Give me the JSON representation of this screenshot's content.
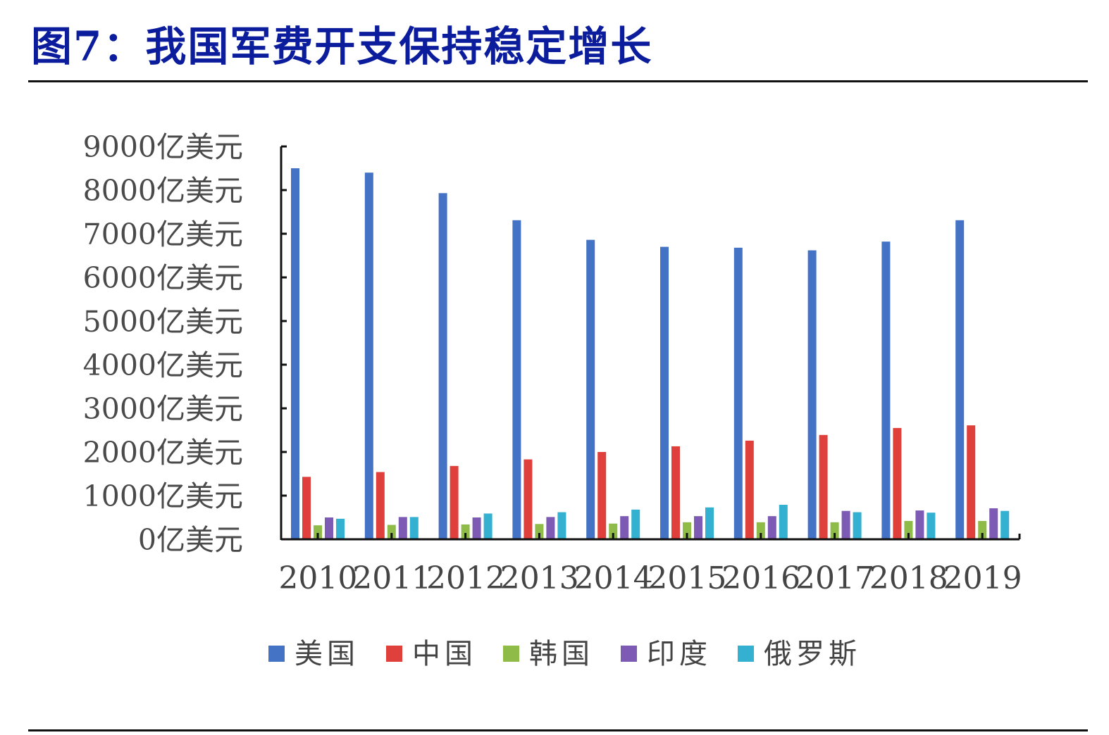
{
  "title": "图7：我国军费开支保持稳定增长",
  "chart_data": {
    "type": "bar",
    "categories": [
      "2010",
      "2011",
      "2012",
      "2013",
      "2014",
      "2015",
      "2016",
      "2017",
      "2018",
      "2019"
    ],
    "series": [
      {
        "name": "美国",
        "color": "#4472c4",
        "values": [
          8500,
          8400,
          7930,
          7310,
          6860,
          6700,
          6680,
          6620,
          6820,
          7310
        ]
      },
      {
        "name": "中国",
        "color": "#e0403c",
        "values": [
          1430,
          1540,
          1680,
          1830,
          2000,
          2130,
          2260,
          2390,
          2550,
          2610
        ]
      },
      {
        "name": "韩国",
        "color": "#8fbc48",
        "values": [
          320,
          330,
          340,
          350,
          360,
          390,
          390,
          390,
          420,
          420
        ]
      },
      {
        "name": "印度",
        "color": "#7d5ab4",
        "values": [
          500,
          510,
          500,
          510,
          530,
          530,
          530,
          650,
          660,
          710
        ]
      },
      {
        "name": "俄罗斯",
        "color": "#34b0d0",
        "values": [
          470,
          510,
          590,
          620,
          680,
          730,
          790,
          620,
          610,
          650
        ]
      }
    ],
    "y_ticks": [
      "0亿美元",
      "1000亿美元",
      "2000亿美元",
      "3000亿美元",
      "4000亿美元",
      "5000亿美元",
      "6000亿美元",
      "7000亿美元",
      "8000亿美元",
      "9000亿美元"
    ],
    "ylim": [
      0,
      9000
    ],
    "grid": false,
    "legend_position": "bottom"
  }
}
